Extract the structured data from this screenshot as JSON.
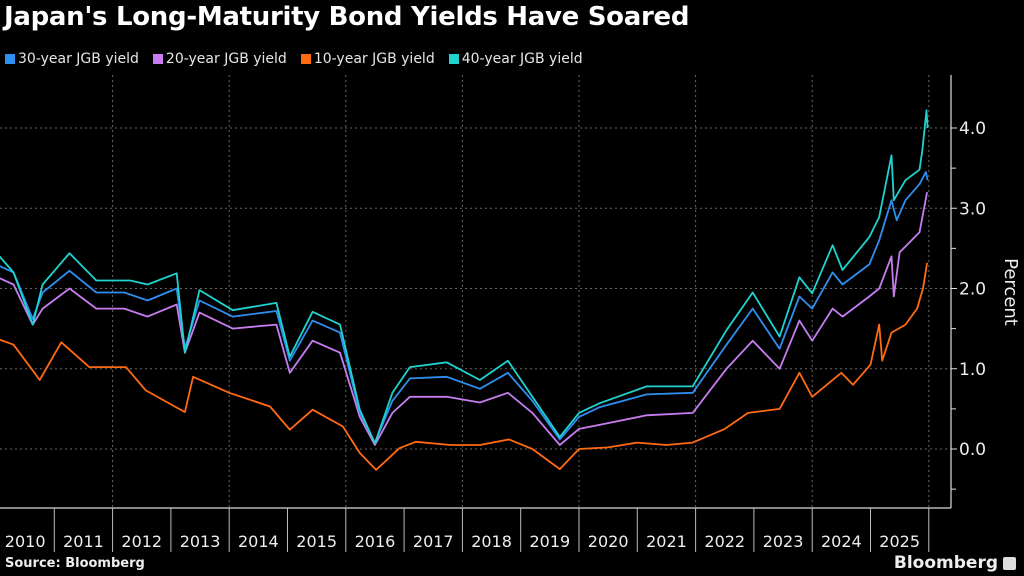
{
  "chart_data": {
    "type": "line",
    "title": "Japan's Long-Maturity Bond Yields Have Soared",
    "xlabel": "",
    "ylabel": "Percent",
    "xlim": [
      2010,
      2026.35
    ],
    "ylim": [
      -0.73,
      4.66
    ],
    "y_ticks": [
      0.0,
      1.0,
      2.0,
      3.0,
      4.0
    ],
    "y_tick_labels": [
      "0.0",
      "1.0",
      "2.0",
      "3.0",
      "4.0"
    ],
    "x_tick_labels": [
      "2010",
      "2011",
      "2012",
      "2013",
      "2014",
      "2015",
      "2016",
      "2017",
      "2018",
      "2019",
      "2020",
      "2021",
      "2022",
      "2023",
      "2024",
      "2025"
    ],
    "grid": true,
    "legend_position": "top-left",
    "source": "Source: Bloomberg",
    "brand": "Bloomberg",
    "series": [
      {
        "name": "30-year JGB yield",
        "color": "#2f8ff0",
        "points": [
          [
            2010.0,
            2.3
          ],
          [
            2010.3,
            2.2
          ],
          [
            2010.63,
            1.62
          ],
          [
            2010.8,
            1.95
          ],
          [
            2011.26,
            2.22
          ],
          [
            2011.72,
            1.95
          ],
          [
            2012.2,
            1.95
          ],
          [
            2012.6,
            1.85
          ],
          [
            2013.1,
            2.0
          ],
          [
            2013.24,
            1.25
          ],
          [
            2013.49,
            1.85
          ],
          [
            2014.06,
            1.65
          ],
          [
            2014.81,
            1.72
          ],
          [
            2015.04,
            1.1
          ],
          [
            2015.43,
            1.6
          ],
          [
            2015.9,
            1.45
          ],
          [
            2016.24,
            0.45
          ],
          [
            2016.5,
            0.08
          ],
          [
            2016.8,
            0.6
          ],
          [
            2017.1,
            0.88
          ],
          [
            2017.73,
            0.9
          ],
          [
            2018.3,
            0.75
          ],
          [
            2018.78,
            0.95
          ],
          [
            2019.2,
            0.6
          ],
          [
            2019.67,
            0.12
          ],
          [
            2020.0,
            0.4
          ],
          [
            2020.35,
            0.52
          ],
          [
            2021.16,
            0.68
          ],
          [
            2021.95,
            0.7
          ],
          [
            2022.53,
            1.3
          ],
          [
            2022.98,
            1.75
          ],
          [
            2023.44,
            1.25
          ],
          [
            2023.78,
            1.9
          ],
          [
            2024.0,
            1.75
          ],
          [
            2024.35,
            2.2
          ],
          [
            2024.52,
            2.05
          ],
          [
            2024.98,
            2.3
          ],
          [
            2025.15,
            2.6
          ],
          [
            2025.36,
            3.1
          ],
          [
            2025.45,
            2.85
          ],
          [
            2025.6,
            3.1
          ],
          [
            2025.84,
            3.3
          ],
          [
            2025.95,
            3.45
          ],
          [
            2025.98,
            3.35
          ]
        ]
      },
      {
        "name": "20-year JGB yield",
        "color": "#c77df0",
        "points": [
          [
            2010.0,
            2.15
          ],
          [
            2010.3,
            2.05
          ],
          [
            2010.63,
            1.55
          ],
          [
            2010.8,
            1.75
          ],
          [
            2011.26,
            2.0
          ],
          [
            2011.72,
            1.75
          ],
          [
            2012.2,
            1.75
          ],
          [
            2012.6,
            1.65
          ],
          [
            2013.1,
            1.8
          ],
          [
            2013.24,
            1.2
          ],
          [
            2013.49,
            1.7
          ],
          [
            2014.06,
            1.5
          ],
          [
            2014.81,
            1.55
          ],
          [
            2015.04,
            0.95
          ],
          [
            2015.43,
            1.35
          ],
          [
            2015.9,
            1.2
          ],
          [
            2016.24,
            0.4
          ],
          [
            2016.5,
            0.05
          ],
          [
            2016.8,
            0.45
          ],
          [
            2017.1,
            0.65
          ],
          [
            2017.73,
            0.65
          ],
          [
            2018.3,
            0.58
          ],
          [
            2018.78,
            0.7
          ],
          [
            2019.2,
            0.45
          ],
          [
            2019.67,
            0.05
          ],
          [
            2020.0,
            0.25
          ],
          [
            2020.35,
            0.3
          ],
          [
            2021.16,
            0.42
          ],
          [
            2021.95,
            0.45
          ],
          [
            2022.53,
            1.0
          ],
          [
            2022.98,
            1.35
          ],
          [
            2023.44,
            1.0
          ],
          [
            2023.78,
            1.6
          ],
          [
            2024.0,
            1.35
          ],
          [
            2024.35,
            1.75
          ],
          [
            2024.52,
            1.65
          ],
          [
            2024.98,
            1.9
          ],
          [
            2025.15,
            2.0
          ],
          [
            2025.36,
            2.4
          ],
          [
            2025.4,
            1.9
          ],
          [
            2025.5,
            2.45
          ],
          [
            2025.84,
            2.7
          ],
          [
            2025.97,
            3.2
          ]
        ]
      },
      {
        "name": "10-year JGB yield",
        "color": "#ff6a13",
        "points": [
          [
            2010.0,
            1.38
          ],
          [
            2010.3,
            1.3
          ],
          [
            2010.63,
            0.98
          ],
          [
            2010.75,
            0.86
          ],
          [
            2011.12,
            1.33
          ],
          [
            2011.6,
            1.02
          ],
          [
            2012.23,
            1.02
          ],
          [
            2012.57,
            0.73
          ],
          [
            2013.24,
            0.46
          ],
          [
            2013.38,
            0.9
          ],
          [
            2014.0,
            0.7
          ],
          [
            2014.7,
            0.53
          ],
          [
            2015.04,
            0.24
          ],
          [
            2015.43,
            0.49
          ],
          [
            2015.95,
            0.28
          ],
          [
            2016.24,
            -0.05
          ],
          [
            2016.52,
            -0.26
          ],
          [
            2016.92,
            0.01
          ],
          [
            2017.2,
            0.09
          ],
          [
            2017.8,
            0.05
          ],
          [
            2018.3,
            0.05
          ],
          [
            2018.8,
            0.12
          ],
          [
            2019.2,
            0.0
          ],
          [
            2019.67,
            -0.25
          ],
          [
            2020.0,
            0.0
          ],
          [
            2020.5,
            0.02
          ],
          [
            2021.0,
            0.08
          ],
          [
            2021.5,
            0.05
          ],
          [
            2021.95,
            0.08
          ],
          [
            2022.5,
            0.25
          ],
          [
            2022.9,
            0.45
          ],
          [
            2023.44,
            0.5
          ],
          [
            2023.78,
            0.95
          ],
          [
            2024.0,
            0.65
          ],
          [
            2024.5,
            0.95
          ],
          [
            2024.7,
            0.8
          ],
          [
            2025.0,
            1.05
          ],
          [
            2025.15,
            1.55
          ],
          [
            2025.2,
            1.1
          ],
          [
            2025.36,
            1.45
          ],
          [
            2025.6,
            1.55
          ],
          [
            2025.8,
            1.75
          ],
          [
            2025.9,
            2.0
          ],
          [
            2025.97,
            2.32
          ]
        ]
      },
      {
        "name": "40-year JGB yield",
        "color": "#1fd3cf",
        "points": [
          [
            2010.0,
            2.35
          ],
          [
            2010.06,
            2.4
          ],
          [
            2010.3,
            2.2
          ],
          [
            2010.63,
            1.55
          ],
          [
            2010.8,
            2.05
          ],
          [
            2011.26,
            2.44
          ],
          [
            2011.72,
            2.1
          ],
          [
            2012.3,
            2.1
          ],
          [
            2012.6,
            2.05
          ],
          [
            2013.1,
            2.19
          ],
          [
            2013.24,
            1.2
          ],
          [
            2013.49,
            1.98
          ],
          [
            2014.06,
            1.73
          ],
          [
            2014.81,
            1.82
          ],
          [
            2015.04,
            1.15
          ],
          [
            2015.43,
            1.71
          ],
          [
            2015.9,
            1.55
          ],
          [
            2016.24,
            0.49
          ],
          [
            2016.5,
            0.07
          ],
          [
            2016.8,
            0.7
          ],
          [
            2017.1,
            1.02
          ],
          [
            2017.73,
            1.08
          ],
          [
            2018.3,
            0.86
          ],
          [
            2018.78,
            1.1
          ],
          [
            2019.2,
            0.65
          ],
          [
            2019.67,
            0.15
          ],
          [
            2020.0,
            0.45
          ],
          [
            2020.35,
            0.57
          ],
          [
            2021.16,
            0.78
          ],
          [
            2021.95,
            0.78
          ],
          [
            2022.53,
            1.48
          ],
          [
            2022.98,
            1.95
          ],
          [
            2023.44,
            1.4
          ],
          [
            2023.78,
            2.14
          ],
          [
            2024.0,
            1.94
          ],
          [
            2024.35,
            2.54
          ],
          [
            2024.52,
            2.23
          ],
          [
            2024.98,
            2.64
          ],
          [
            2025.15,
            2.89
          ],
          [
            2025.36,
            3.66
          ],
          [
            2025.4,
            3.1
          ],
          [
            2025.6,
            3.35
          ],
          [
            2025.84,
            3.48
          ],
          [
            2025.89,
            3.73
          ],
          [
            2025.96,
            4.22
          ],
          [
            2025.98,
            4.0
          ]
        ]
      }
    ]
  }
}
